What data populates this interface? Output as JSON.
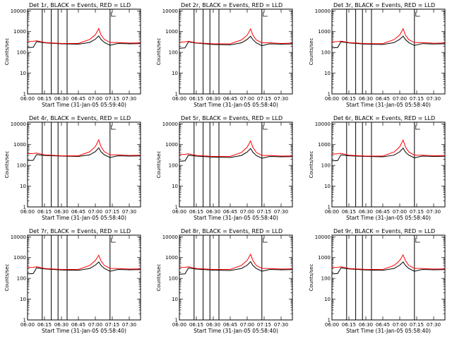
{
  "chart_data": [
    {
      "type": "line",
      "title": "Det 1r, BLACK = Events, RED = LLD",
      "ylabel": "Counts/sec",
      "xlabel": "Start Time (31-Jan-05 05:59:40)",
      "yscale": "log",
      "ylim": [
        1,
        12000
      ],
      "xlim": [
        "06:00",
        "07:40"
      ],
      "x_ticks": [
        "06:00",
        "06:15",
        "06:30",
        "06:45",
        "07:00",
        "07:15",
        "07:30"
      ],
      "y_ticks": [
        "1",
        "10",
        "100",
        "1000",
        "10000"
      ],
      "markers": [
        "06:13",
        "06:21",
        "06:27",
        "06:35",
        "07:13"
      ],
      "x": [
        "06:00",
        "06:05",
        "06:08",
        "06:15",
        "06:30",
        "06:45",
        "06:55",
        "07:00",
        "07:03",
        "07:05",
        "07:08",
        "07:13",
        "07:20",
        "07:30",
        "07:40"
      ],
      "series": [
        {
          "name": "BLACK = Events",
          "color": "#000000",
          "values": [
            170,
            175,
            330,
            290,
            260,
            250,
            300,
            430,
            620,
            420,
            300,
            220,
            270,
            260,
            265
          ]
        },
        {
          "name": "RED = LLD",
          "color": "#ff0000",
          "values": [
            330,
            340,
            360,
            300,
            270,
            270,
            420,
            700,
            1400,
            700,
            420,
            300,
            300,
            280,
            290
          ]
        }
      ]
    },
    {
      "type": "line",
      "title": "Det 2r, BLACK = Events, RED = LLD",
      "ylabel": "Counts/sec",
      "xlabel": "Start Time (31-Jan-05 05:58:40)",
      "yscale": "log",
      "ylim": [
        1,
        12000
      ],
      "xlim": [
        "06:00",
        "07:40"
      ],
      "x_ticks": [
        "06:00",
        "06:15",
        "06:30",
        "06:45",
        "07:00",
        "07:15",
        "07:30"
      ],
      "y_ticks": [
        "1",
        "10",
        "100",
        "1000",
        "10000"
      ],
      "markers": [
        "06:13",
        "06:21",
        "06:27",
        "06:35",
        "07:13"
      ],
      "x": [
        "06:00",
        "06:05",
        "06:08",
        "06:15",
        "06:30",
        "06:45",
        "06:55",
        "07:00",
        "07:03",
        "07:05",
        "07:08",
        "07:13",
        "07:20",
        "07:30",
        "07:40"
      ],
      "series": [
        {
          "name": "BLACK = Events",
          "color": "#000000",
          "values": [
            160,
            165,
            320,
            280,
            240,
            230,
            290,
            420,
            600,
            410,
            290,
            210,
            260,
            250,
            255
          ]
        },
        {
          "name": "RED = LLD",
          "color": "#ff0000",
          "values": [
            310,
            320,
            340,
            290,
            260,
            260,
            400,
            680,
            1350,
            680,
            400,
            290,
            290,
            270,
            280
          ]
        }
      ]
    },
    {
      "type": "line",
      "title": "Det 3r, BLACK = Events, RED = LLD",
      "ylabel": "Counts/sec",
      "xlabel": "Start Time (31-Jan-05 05:58:40)",
      "yscale": "log",
      "ylim": [
        1,
        12000
      ],
      "xlim": [
        "06:00",
        "07:40"
      ],
      "x_ticks": [
        "06:00",
        "06:15",
        "06:30",
        "06:45",
        "07:00",
        "07:15",
        "07:30"
      ],
      "y_ticks": [
        "1",
        "10",
        "100",
        "1000",
        "10000"
      ],
      "markers": [
        "06:13",
        "06:21",
        "06:27",
        "06:35",
        "07:13"
      ],
      "x": [
        "06:00",
        "06:05",
        "06:08",
        "06:15",
        "06:30",
        "06:45",
        "06:55",
        "07:00",
        "07:03",
        "07:05",
        "07:08",
        "07:13",
        "07:20",
        "07:30",
        "07:40"
      ],
      "series": [
        {
          "name": "BLACK = Events",
          "color": "#000000",
          "values": [
            165,
            170,
            325,
            285,
            250,
            240,
            295,
            425,
            610,
            415,
            295,
            215,
            265,
            255,
            260
          ]
        },
        {
          "name": "RED = LLD",
          "color": "#ff0000",
          "values": [
            320,
            330,
            350,
            295,
            265,
            265,
            410,
            690,
            1380,
            690,
            410,
            295,
            295,
            275,
            285
          ]
        }
      ]
    },
    {
      "type": "line",
      "title": "Det 4r, BLACK = Events, RED = LLD",
      "ylabel": "Counts/sec",
      "xlabel": "Start Time (31-Jan-05 05:58:40)",
      "yscale": "log",
      "ylim": [
        1,
        12000
      ],
      "xlim": [
        "06:00",
        "07:40"
      ],
      "x_ticks": [
        "06:00",
        "06:15",
        "06:30",
        "06:45",
        "07:00",
        "07:15",
        "07:30"
      ],
      "y_ticks": [
        "1",
        "10",
        "100",
        "1000",
        "10000"
      ],
      "markers": [
        "06:13",
        "06:21",
        "06:27",
        "06:35",
        "07:13"
      ],
      "x": [
        "06:00",
        "06:05",
        "06:08",
        "06:15",
        "06:30",
        "06:45",
        "06:55",
        "07:00",
        "07:03",
        "07:05",
        "07:08",
        "07:13",
        "07:20",
        "07:30",
        "07:40"
      ],
      "series": [
        {
          "name": "BLACK = Events",
          "color": "#000000",
          "values": [
            170,
            175,
            330,
            300,
            280,
            270,
            320,
            460,
            700,
            450,
            320,
            240,
            290,
            280,
            285
          ]
        },
        {
          "name": "RED = LLD",
          "color": "#ff0000",
          "values": [
            360,
            370,
            390,
            320,
            290,
            290,
            450,
            800,
            1700,
            800,
            450,
            320,
            320,
            300,
            310
          ]
        }
      ]
    },
    {
      "type": "line",
      "title": "Det 5r, BLACK = Events, RED = LLD",
      "ylabel": "Counts/sec",
      "xlabel": "Start Time (31-Jan-05 05:58:40)",
      "yscale": "log",
      "ylim": [
        1,
        12000
      ],
      "xlim": [
        "06:00",
        "07:40"
      ],
      "x_ticks": [
        "06:00",
        "06:15",
        "06:30",
        "06:45",
        "07:00",
        "07:15",
        "07:30"
      ],
      "y_ticks": [
        "1",
        "10",
        "100",
        "1000",
        "10000"
      ],
      "markers": [
        "06:13",
        "06:21",
        "06:27",
        "06:35",
        "07:13"
      ],
      "x": [
        "06:00",
        "06:05",
        "06:08",
        "06:15",
        "06:30",
        "06:45",
        "06:55",
        "07:00",
        "07:03",
        "07:05",
        "07:08",
        "07:13",
        "07:20",
        "07:30",
        "07:40"
      ],
      "series": [
        {
          "name": "BLACK = Events",
          "color": "#000000",
          "values": [
            160,
            165,
            310,
            280,
            250,
            240,
            300,
            440,
            650,
            430,
            300,
            220,
            270,
            260,
            265
          ]
        },
        {
          "name": "RED = LLD",
          "color": "#ff0000",
          "values": [
            330,
            340,
            360,
            300,
            270,
            270,
            420,
            750,
            1500,
            750,
            420,
            300,
            300,
            280,
            290
          ]
        }
      ]
    },
    {
      "type": "line",
      "title": "Det 6r, BLACK = Events, RED = LLD",
      "ylabel": "Counts/sec",
      "xlabel": "Start Time (31-Jan-05 05:58:40)",
      "yscale": "log",
      "ylim": [
        1,
        12000
      ],
      "xlim": [
        "06:00",
        "07:40"
      ],
      "x_ticks": [
        "06:00",
        "06:15",
        "06:30",
        "06:45",
        "07:00",
        "07:15",
        "07:30"
      ],
      "y_ticks": [
        "1",
        "10",
        "100",
        "1000",
        "10000"
      ],
      "markers": [
        "06:13",
        "06:21",
        "06:27",
        "06:35",
        "07:13"
      ],
      "x": [
        "06:00",
        "06:05",
        "06:08",
        "06:15",
        "06:30",
        "06:45",
        "06:55",
        "07:00",
        "07:03",
        "07:05",
        "07:08",
        "07:13",
        "07:20",
        "07:30",
        "07:40"
      ],
      "series": [
        {
          "name": "BLACK = Events",
          "color": "#000000",
          "values": [
            165,
            170,
            320,
            290,
            270,
            260,
            310,
            450,
            680,
            440,
            310,
            230,
            280,
            270,
            275
          ]
        },
        {
          "name": "RED = LLD",
          "color": "#ff0000",
          "values": [
            350,
            360,
            380,
            310,
            280,
            280,
            440,
            780,
            1650,
            780,
            440,
            310,
            310,
            290,
            300
          ]
        }
      ]
    },
    {
      "type": "line",
      "title": "Det 7r, BLACK = Events, RED = LLD",
      "ylabel": "Counts/sec",
      "xlabel": "Start Time (31-Jan-05 05:58:40)",
      "yscale": "log",
      "ylim": [
        1,
        12000
      ],
      "xlim": [
        "06:00",
        "07:40"
      ],
      "x_ticks": [
        "06:00",
        "06:15",
        "06:30",
        "06:45",
        "07:00",
        "07:15",
        "07:30"
      ],
      "y_ticks": [
        "1",
        "10",
        "100",
        "1000",
        "10000"
      ],
      "markers": [
        "06:13",
        "06:21",
        "06:27",
        "06:35",
        "07:13"
      ],
      "x": [
        "06:00",
        "06:05",
        "06:08",
        "06:15",
        "06:30",
        "06:45",
        "06:55",
        "07:00",
        "07:03",
        "07:05",
        "07:08",
        "07:13",
        "07:20",
        "07:30",
        "07:40"
      ],
      "series": [
        {
          "name": "BLACK = Events",
          "color": "#000000",
          "values": [
            165,
            170,
            320,
            285,
            255,
            245,
            300,
            430,
            620,
            420,
            300,
            220,
            270,
            260,
            265
          ]
        },
        {
          "name": "RED = LLD",
          "color": "#ff0000",
          "values": [
            330,
            340,
            360,
            300,
            270,
            270,
            420,
            720,
            1300,
            700,
            420,
            300,
            300,
            280,
            290
          ]
        }
      ]
    },
    {
      "type": "line",
      "title": "Det 8r, BLACK = Events, RED = LLD",
      "ylabel": "Counts/sec",
      "xlabel": "Start Time (31-Jan-05 05:58:40)",
      "yscale": "log",
      "ylim": [
        1,
        12000
      ],
      "xlim": [
        "06:00",
        "07:40"
      ],
      "x_ticks": [
        "06:00",
        "06:15",
        "06:30",
        "06:45",
        "07:00",
        "07:15",
        "07:30"
      ],
      "y_ticks": [
        "1",
        "10",
        "100",
        "1000",
        "10000"
      ],
      "markers": [
        "06:13",
        "06:21",
        "06:27",
        "06:35",
        "07:13"
      ],
      "x": [
        "06:00",
        "06:05",
        "06:08",
        "06:15",
        "06:30",
        "06:45",
        "06:55",
        "07:00",
        "07:03",
        "07:05",
        "07:08",
        "07:13",
        "07:20",
        "07:30",
        "07:40"
      ],
      "series": [
        {
          "name": "BLACK = Events",
          "color": "#000000",
          "values": [
            160,
            165,
            315,
            280,
            250,
            240,
            300,
            430,
            640,
            420,
            300,
            220,
            270,
            260,
            265
          ]
        },
        {
          "name": "RED = LLD",
          "color": "#ff0000",
          "values": [
            330,
            340,
            360,
            300,
            270,
            270,
            420,
            740,
            1450,
            740,
            420,
            300,
            300,
            280,
            290
          ]
        }
      ]
    },
    {
      "type": "line",
      "title": "Det 9r, BLACK = Events, RED = LLD",
      "ylabel": "Counts/sec",
      "xlabel": "Start Time (31-Jan-05 05:58:40)",
      "yscale": "log",
      "ylim": [
        1,
        12000
      ],
      "xlim": [
        "06:00",
        "07:40"
      ],
      "x_ticks": [
        "06:00",
        "06:15",
        "06:30",
        "06:45",
        "07:00",
        "07:15",
        "07:30"
      ],
      "y_ticks": [
        "1",
        "10",
        "100",
        "1000",
        "10000"
      ],
      "markers": [
        "06:13",
        "06:21",
        "06:27",
        "06:35",
        "07:13"
      ],
      "x": [
        "06:00",
        "06:05",
        "06:08",
        "06:15",
        "06:30",
        "06:45",
        "06:55",
        "07:00",
        "07:03",
        "07:05",
        "07:08",
        "07:13",
        "07:20",
        "07:30",
        "07:40"
      ],
      "series": [
        {
          "name": "BLACK = Events",
          "color": "#000000",
          "values": [
            165,
            170,
            320,
            285,
            255,
            245,
            300,
            430,
            620,
            420,
            300,
            220,
            270,
            260,
            265
          ]
        },
        {
          "name": "RED = LLD",
          "color": "#ff0000",
          "values": [
            330,
            340,
            360,
            300,
            270,
            270,
            420,
            720,
            1350,
            720,
            420,
            300,
            300,
            280,
            290
          ]
        }
      ]
    }
  ]
}
